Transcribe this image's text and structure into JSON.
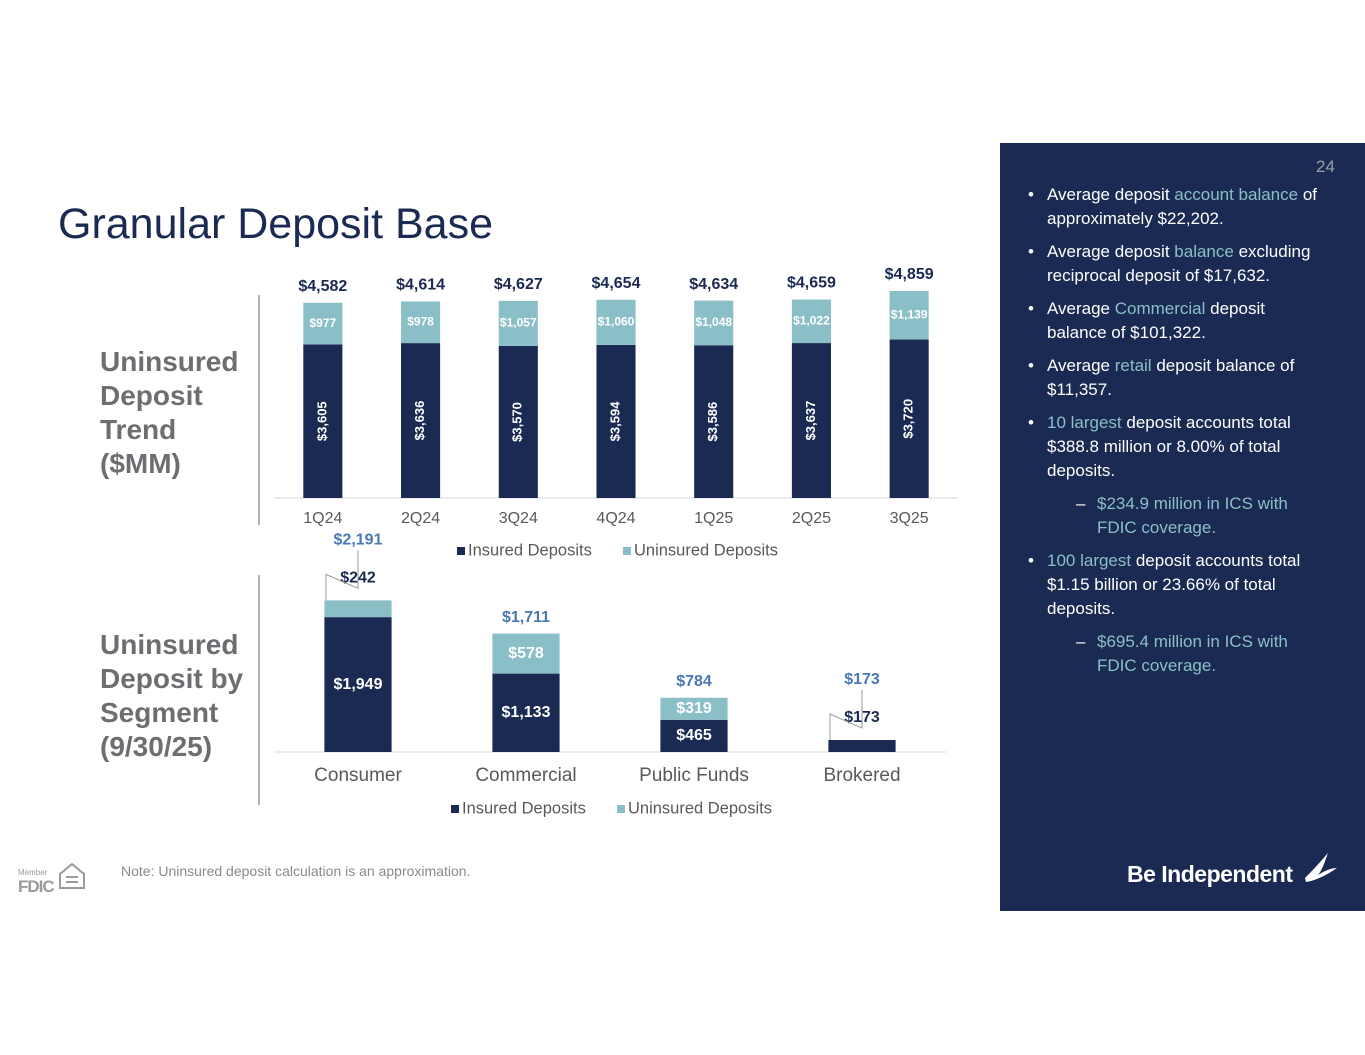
{
  "title": "Granular Deposit Base",
  "page_number": "24",
  "chart_data": [
    {
      "type": "bar",
      "stacked": true,
      "label": "Uninsured Deposit Trend ($MM)",
      "categories": [
        "1Q24",
        "2Q24",
        "3Q24",
        "4Q24",
        "1Q25",
        "2Q25",
        "3Q25"
      ],
      "series": [
        {
          "name": "Insured Deposits",
          "color": "#1b2a52",
          "values": [
            3605,
            3636,
            3570,
            3594,
            3586,
            3637,
            3720
          ],
          "value_labels": [
            "$3,605",
            "$3,636",
            "$3,570",
            "$3,594",
            "$3,586",
            "$3,637",
            "$3,720"
          ]
        },
        {
          "name": "Uninsured Deposits",
          "color": "#8bbfc7",
          "values": [
            977,
            978,
            1057,
            1060,
            1048,
            1022,
            1139
          ],
          "value_labels": [
            "$977",
            "$978",
            "$1,057",
            "$1,060",
            "$1,048",
            "$1,022",
            "$1,139"
          ]
        }
      ],
      "totals": [
        4582,
        4614,
        4627,
        4654,
        4634,
        4659,
        4859
      ],
      "total_labels": [
        "$4,582",
        "$4,614",
        "$4,627",
        "$4,654",
        "$4,634",
        "$4,659",
        "$4,859"
      ],
      "total_color": "#1b2a52",
      "ylim": [
        0,
        5000
      ]
    },
    {
      "type": "bar",
      "stacked": true,
      "label": "Uninsured Deposit by Segment (9/30/25)",
      "categories": [
        "Consumer",
        "Commercial",
        "Public Funds",
        "Brokered"
      ],
      "series": [
        {
          "name": "Insured Deposits",
          "color": "#1b2a52",
          "values": [
            1949,
            1133,
            465,
            173
          ],
          "value_labels": [
            "$1,949",
            "$1,133",
            "$465",
            "$173"
          ]
        },
        {
          "name": "Uninsured Deposits",
          "color": "#8bbfc7",
          "values": [
            242,
            578,
            319,
            0
          ],
          "value_labels": [
            "$242",
            "$578",
            "$319",
            null
          ]
        }
      ],
      "totals": [
        2191,
        1711,
        784,
        173
      ],
      "total_labels": [
        "$2,191",
        "$1,711",
        "$784",
        "$173"
      ],
      "total_color": "#4a78b5",
      "ylim": [
        0,
        2500
      ]
    }
  ],
  "panel": {
    "bullets": [
      {
        "level": 1,
        "parts": [
          {
            "text": "Average deposit "
          },
          {
            "text": "account balance",
            "accent": true
          },
          {
            "text": " of approximately $22,202."
          }
        ]
      },
      {
        "level": 1,
        "parts": [
          {
            "text": "Average deposit "
          },
          {
            "text": "balance",
            "accent": true
          },
          {
            "text": " excluding reciprocal deposit of $17,632."
          }
        ]
      },
      {
        "level": 1,
        "parts": [
          {
            "text": "Average "
          },
          {
            "text": "Commercial",
            "accent": true
          },
          {
            "text": " deposit balance of $101,322."
          }
        ]
      },
      {
        "level": 1,
        "parts": [
          {
            "text": "Average "
          },
          {
            "text": "retail",
            "accent": true
          },
          {
            "text": " deposit balance of $11,357."
          }
        ]
      },
      {
        "level": 1,
        "parts": [
          {
            "text": "10 largest",
            "accent": true
          },
          {
            "text": " deposit accounts total $388.8 million or 8.00% of total deposits."
          }
        ]
      },
      {
        "level": 2,
        "parts": [
          {
            "text": "$234.9 million in ICS with FDIC coverage."
          }
        ]
      },
      {
        "level": 1,
        "parts": [
          {
            "text": "100 largest",
            "accent": true
          },
          {
            "text": " deposit accounts total $1.15 billion or 23.66% of total deposits."
          }
        ]
      },
      {
        "level": 2,
        "parts": [
          {
            "text": "$695.4 million in ICS with FDIC coverage."
          }
        ]
      }
    ]
  },
  "note": "Note: Uninsured deposit calculation is an approximation.",
  "footer": {
    "member": "Member",
    "fdic": "FDIC",
    "brand": "Be Independent"
  }
}
